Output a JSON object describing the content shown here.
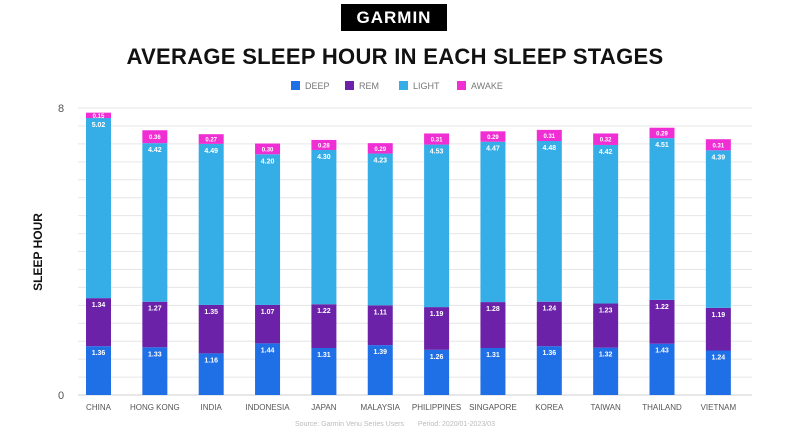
{
  "brand": "GARMIN",
  "source": {
    "label": "Source: Garmin Venu Series Users",
    "period": "Period: 2020/01-2023/03"
  },
  "colors": {
    "deep": "#1f6fe6",
    "rem": "#6b22a8",
    "light": "#35aee8",
    "awake": "#ef2fd3"
  },
  "chart_data": {
    "type": "bar",
    "stacked": true,
    "title": "AVERAGE SLEEP HOUR IN EACH SLEEP STAGES",
    "ylabel": "SLEEP HOUR",
    "xlabel": "",
    "ylim": [
      0,
      8
    ],
    "yticks": [
      "0",
      "8"
    ],
    "grid": true,
    "legend_position": "top",
    "categories": [
      "CHINA",
      "HONG KONG",
      "INDIA",
      "INDONESIA",
      "JAPAN",
      "MALAYSIA",
      "PHILIPPINES",
      "SINGAPORE",
      "KOREA",
      "TAIWAN",
      "THAILAND",
      "VIETNAM"
    ],
    "series": [
      {
        "name": "DEEP",
        "values": [
          1.36,
          1.33,
          1.16,
          1.44,
          1.31,
          1.39,
          1.26,
          1.31,
          1.36,
          1.32,
          1.43,
          1.24
        ],
        "labels": [
          "1.36",
          "1.33",
          "1.16",
          "1.44",
          "1.31",
          "1.39",
          "1.26",
          "1.31",
          "1.36",
          "1.32",
          "1.43",
          "1.24"
        ]
      },
      {
        "name": "REM",
        "values": [
          1.34,
          1.27,
          1.35,
          1.07,
          1.22,
          1.11,
          1.19,
          1.28,
          1.24,
          1.23,
          1.22,
          1.19
        ],
        "labels": [
          "1.34",
          "1.27",
          "1.35",
          "1.07",
          "1.22",
          "1.11",
          "1.19",
          "1.28",
          "1.24",
          "1.23",
          "1.22",
          "1.19"
        ]
      },
      {
        "name": "LIGHT",
        "values": [
          5.02,
          4.42,
          4.49,
          4.2,
          4.3,
          4.23,
          4.53,
          4.47,
          4.48,
          4.42,
          4.51,
          4.39
        ],
        "labels": [
          "5.02",
          "4.42",
          "4.49",
          "4.20",
          "4.30",
          "4.23",
          "4.53",
          "4.47",
          "4.48",
          "4.42",
          "4.51",
          "4.39"
        ]
      },
      {
        "name": "AWAKE",
        "values": [
          0.15,
          0.36,
          0.27,
          0.3,
          0.28,
          0.29,
          0.31,
          0.29,
          0.31,
          0.32,
          0.29,
          0.31
        ],
        "labels": [
          "0.15",
          "0.36",
          "0.27",
          "0.30",
          "0.28",
          "0.29",
          "0.31",
          "0.29",
          "0.31",
          "0.32",
          "0.29",
          "0.31"
        ]
      }
    ]
  }
}
